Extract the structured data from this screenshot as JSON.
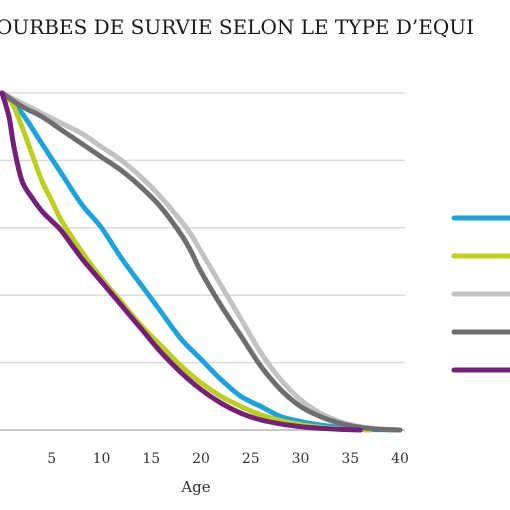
{
  "chart_data": {
    "type": "line",
    "title": "OURBES DE SURVIE SELON LE TYPE D’EQUI",
    "xlabel": "Age",
    "ylabel": "",
    "xlim": [
      0,
      40
    ],
    "ylim": [
      0,
      1
    ],
    "x_ticks": [
      5,
      10,
      15,
      20,
      25,
      30,
      35,
      40
    ],
    "x_tick_labels": [
      "5",
      "10",
      "15",
      "20",
      "25",
      "30",
      "35",
      "40"
    ],
    "grid": "horizontal",
    "legend": {
      "position": "right",
      "show_names": false
    },
    "series": [
      {
        "color": "#1ba3dc",
        "points": [
          [
            0,
            1.0
          ],
          [
            2,
            0.94
          ],
          [
            4,
            0.85
          ],
          [
            6,
            0.76
          ],
          [
            8,
            0.67
          ],
          [
            10,
            0.6
          ],
          [
            12,
            0.51
          ],
          [
            14,
            0.43
          ],
          [
            16,
            0.35
          ],
          [
            18,
            0.27
          ],
          [
            20,
            0.21
          ],
          [
            22,
            0.15
          ],
          [
            24,
            0.1
          ],
          [
            26,
            0.07
          ],
          [
            28,
            0.04
          ],
          [
            30,
            0.025
          ],
          [
            32,
            0.015
          ],
          [
            34,
            0.008
          ],
          [
            36,
            0.003
          ],
          [
            38,
            0.001
          ],
          [
            40,
            0.0
          ]
        ]
      },
      {
        "color": "#bccf1c",
        "points": [
          [
            0,
            1.0
          ],
          [
            1,
            0.97
          ],
          [
            2,
            0.9
          ],
          [
            3,
            0.82
          ],
          [
            4,
            0.74
          ],
          [
            5,
            0.68
          ],
          [
            6,
            0.62
          ],
          [
            8,
            0.53
          ],
          [
            10,
            0.45
          ],
          [
            12,
            0.38
          ],
          [
            14,
            0.31
          ],
          [
            16,
            0.25
          ],
          [
            18,
            0.19
          ],
          [
            20,
            0.14
          ],
          [
            22,
            0.1
          ],
          [
            24,
            0.07
          ],
          [
            26,
            0.045
          ],
          [
            28,
            0.028
          ],
          [
            30,
            0.016
          ],
          [
            32,
            0.008
          ],
          [
            34,
            0.003
          ],
          [
            36,
            0.001
          ],
          [
            37,
            0.0
          ]
        ]
      },
      {
        "color": "#c2c2c2",
        "points": [
          [
            0,
            1.0
          ],
          [
            2,
            0.97
          ],
          [
            4,
            0.94
          ],
          [
            6,
            0.91
          ],
          [
            8,
            0.88
          ],
          [
            10,
            0.84
          ],
          [
            12,
            0.8
          ],
          [
            14,
            0.75
          ],
          [
            16,
            0.69
          ],
          [
            18,
            0.62
          ],
          [
            19,
            0.58
          ],
          [
            20,
            0.53
          ],
          [
            22,
            0.43
          ],
          [
            24,
            0.33
          ],
          [
            26,
            0.23
          ],
          [
            28,
            0.15
          ],
          [
            30,
            0.09
          ],
          [
            32,
            0.05
          ],
          [
            34,
            0.025
          ],
          [
            36,
            0.01
          ],
          [
            38,
            0.003
          ],
          [
            40,
            0.0
          ]
        ]
      },
      {
        "color": "#6d6e70",
        "points": [
          [
            0,
            1.0
          ],
          [
            2,
            0.96
          ],
          [
            4,
            0.93
          ],
          [
            6,
            0.89
          ],
          [
            8,
            0.85
          ],
          [
            10,
            0.81
          ],
          [
            12,
            0.77
          ],
          [
            14,
            0.72
          ],
          [
            16,
            0.66
          ],
          [
            18,
            0.58
          ],
          [
            19,
            0.53
          ],
          [
            20,
            0.47
          ],
          [
            22,
            0.37
          ],
          [
            24,
            0.28
          ],
          [
            26,
            0.19
          ],
          [
            28,
            0.12
          ],
          [
            30,
            0.07
          ],
          [
            32,
            0.04
          ],
          [
            34,
            0.02
          ],
          [
            36,
            0.008
          ],
          [
            38,
            0.002
          ],
          [
            40,
            0.0
          ]
        ]
      },
      {
        "color": "#74207a",
        "points": [
          [
            0,
            1.0
          ],
          [
            0.7,
            0.93
          ],
          [
            1.2,
            0.84
          ],
          [
            2,
            0.74
          ],
          [
            3,
            0.69
          ],
          [
            4,
            0.65
          ],
          [
            5,
            0.62
          ],
          [
            6,
            0.59
          ],
          [
            8,
            0.51
          ],
          [
            10,
            0.44
          ],
          [
            12,
            0.37
          ],
          [
            14,
            0.3
          ],
          [
            16,
            0.23
          ],
          [
            18,
            0.17
          ],
          [
            20,
            0.12
          ],
          [
            22,
            0.08
          ],
          [
            24,
            0.05
          ],
          [
            26,
            0.03
          ],
          [
            28,
            0.018
          ],
          [
            30,
            0.01
          ],
          [
            32,
            0.005
          ],
          [
            34,
            0.002
          ],
          [
            36,
            0.0
          ]
        ]
      }
    ]
  }
}
